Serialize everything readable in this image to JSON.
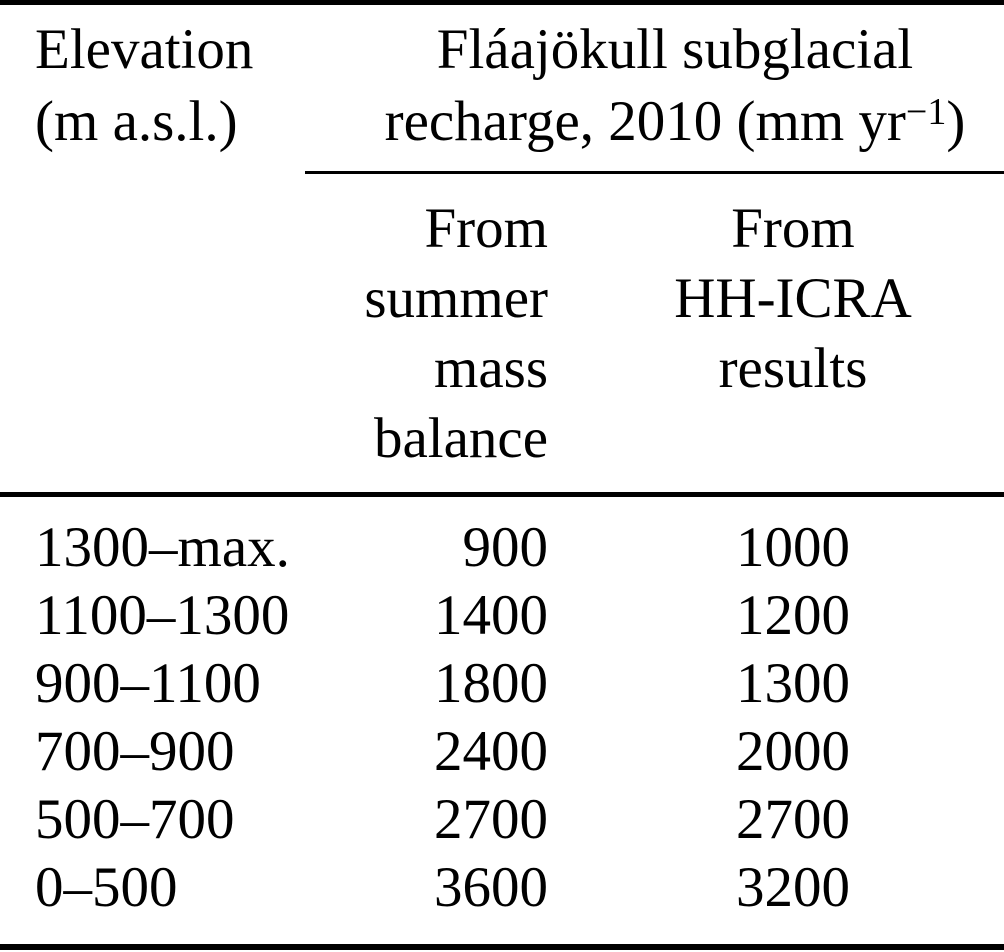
{
  "table": {
    "col1_header": {
      "line1": "Elevation",
      "line2": "(m a.s.l.)"
    },
    "span_header": {
      "line1": "Fláajökull subglacial",
      "line2_prefix": "recharge, 2010 (mm yr",
      "line2_sup": "−1",
      "line2_suffix": ")"
    },
    "subheaders": {
      "col2_lines": [
        "From",
        "summer",
        "mass",
        "balance"
      ],
      "col3_lines": [
        "From",
        "HH-ICRA",
        "results"
      ]
    },
    "rows": [
      {
        "elevation": "1300–max.",
        "from_summer_mass_balance": "900",
        "from_hh_icra": "1000"
      },
      {
        "elevation": "1100–1300",
        "from_summer_mass_balance": "1400",
        "from_hh_icra": "1200"
      },
      {
        "elevation": "900–1100",
        "from_summer_mass_balance": "1800",
        "from_hh_icra": "1300"
      },
      {
        "elevation": "700–900",
        "from_summer_mass_balance": "2400",
        "from_hh_icra": "2000"
      },
      {
        "elevation": "500–700",
        "from_summer_mass_balance": "2700",
        "from_hh_icra": "2700"
      },
      {
        "elevation": "0–500",
        "from_summer_mass_balance": "3600",
        "from_hh_icra": "3200"
      }
    ]
  },
  "chart_data": {
    "type": "table",
    "title": "Fláajökull subglacial recharge, 2010 (mm yr−1)",
    "columns": [
      "Elevation (m a.s.l.)",
      "From summer mass balance",
      "From HH-ICRA results"
    ],
    "rows": [
      [
        "1300–max.",
        900,
        1000
      ],
      [
        "1100–1300",
        1400,
        1200
      ],
      [
        "900–1100",
        1800,
        1300
      ],
      [
        "700–900",
        2400,
        2000
      ],
      [
        "500–700",
        2700,
        2700
      ],
      [
        "0–500",
        3600,
        3200
      ]
    ],
    "colors": {
      "text": "#000000",
      "background": "#ffffff",
      "rules": "#000000"
    }
  }
}
